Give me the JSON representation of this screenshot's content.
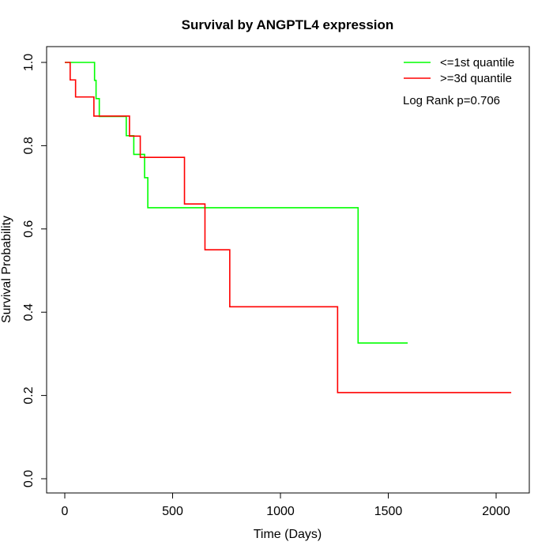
{
  "chart_data": {
    "type": "line",
    "title": "Survival by ANGPTL4 expression",
    "xlabel": "Time (Days)",
    "ylabel": "Survival Probability",
    "xlim": [
      0,
      2070
    ],
    "ylim": [
      0,
      1
    ],
    "x_ticks": [
      0,
      500,
      1000,
      1500,
      2000
    ],
    "x_tick_labels": [
      "0",
      "500",
      "1000",
      "1500",
      "2000"
    ],
    "y_ticks": [
      0,
      0.2,
      0.4,
      0.6,
      0.8,
      1.0
    ],
    "y_tick_labels": [
      "0.0",
      "0.2",
      "0.4",
      "0.6",
      "0.8",
      "1.0"
    ],
    "grid": false,
    "legend_position": "top-right",
    "annotation": "Log Rank p=0.706",
    "series": [
      {
        "name": "<=1st quantile",
        "color": "#00ff00",
        "step": true,
        "x": [
          0,
          138,
          145,
          160,
          285,
          320,
          370,
          385,
          1360,
          1590
        ],
        "y": [
          1.0,
          0.957,
          0.913,
          0.87,
          0.824,
          0.779,
          0.723,
          0.651,
          0.326,
          0.326
        ]
      },
      {
        "name": ">=3d quantile",
        "color": "#ff0000",
        "step": true,
        "x": [
          0,
          25,
          50,
          135,
          300,
          350,
          555,
          650,
          765,
          1265,
          2070
        ],
        "y": [
          1.0,
          0.958,
          0.917,
          0.871,
          0.823,
          0.772,
          0.66,
          0.55,
          0.413,
          0.207,
          0.207
        ]
      }
    ]
  }
}
